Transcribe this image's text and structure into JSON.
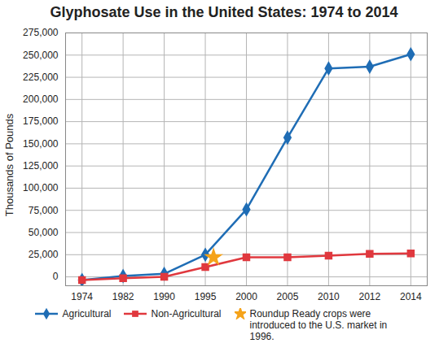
{
  "chart_data": {
    "type": "line",
    "title": "Glyphosate Use in the United States: 1974 to 2014",
    "y_label": "Thousands of Pounds",
    "categories": [
      "1974",
      "1982",
      "1990",
      "1995",
      "2000",
      "2005",
      "2010",
      "2012",
      "2014"
    ],
    "series": [
      {
        "name": "Agricultural",
        "color": "#1f6db5",
        "marker": "diamond",
        "values": [
          -3500,
          1000,
          3500,
          25000,
          76000,
          157000,
          235000,
          237000,
          251000
        ]
      },
      {
        "name": "Non-Agricultural",
        "color": "#e0383e",
        "marker": "square",
        "values": [
          -3500,
          -1500,
          0,
          11000,
          22000,
          22000,
          24000,
          26000,
          26500
        ]
      }
    ],
    "ylim": [
      -10000,
      275000
    ],
    "yticks": [
      0,
      {
        "value": 25000,
        "label": "25,000"
      },
      {
        "value": 50000,
        "label": "50,000"
      },
      {
        "value": 75000,
        "label": "75,000"
      },
      {
        "value": 100000,
        "label": "100,000"
      },
      {
        "value": 125000,
        "label": "125,000"
      },
      {
        "value": 150000,
        "label": "150,000"
      },
      {
        "value": 175000,
        "label": "175,000"
      },
      {
        "value": 200000,
        "label": "200,000"
      },
      {
        "value": 225000,
        "label": "225,000"
      },
      {
        "value": 250000,
        "label": "250,000"
      },
      {
        "value": 275000,
        "label": "275,000"
      }
    ],
    "grid": true,
    "legend": "bottom",
    "annotations": [
      {
        "text": "Roundup Ready crops were introduced to the U.S. market in 1996.",
        "x": 1996,
        "y": 22000,
        "color": "#f5a31a",
        "marker": "star"
      }
    ]
  }
}
